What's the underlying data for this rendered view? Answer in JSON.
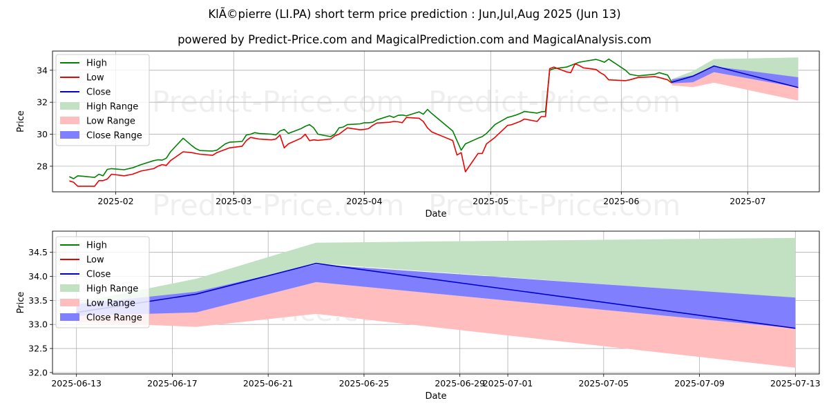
{
  "title": "KlÃ©pierre (LI.PA) short term price prediction : Jun,Jul,Aug 2025 (Jun 13)",
  "subtitle": "powered by Predict-Price.com and MagicalPrediction.com and MagicalAnalysis.com",
  "watermark": "Predict-Price.com",
  "colors": {
    "high": "#008000",
    "low": "#ee0000",
    "close": "#0000cc",
    "high_range": "#c2e0c2",
    "low_range": "#ffbdbd",
    "close_range": "#8080ff"
  },
  "chart_data": [
    {
      "type": "line",
      "xlabel": "Date",
      "ylabel": "Price",
      "xlim": [
        "2025-01-17",
        "2025-07-18"
      ],
      "ylim": [
        26.4,
        35.2
      ],
      "x_ticks": [
        "2025-02",
        "2025-03",
        "2025-04",
        "2025-05",
        "2025-06",
        "2025-07"
      ],
      "x_tick_dates": [
        "2025-02-01",
        "2025-03-01",
        "2025-04-01",
        "2025-05-01",
        "2025-06-01",
        "2025-07-01"
      ],
      "y_ticks": [
        28,
        30,
        32,
        34
      ],
      "legend": [
        "High",
        "Low",
        "Close",
        "High Range",
        "Low Range",
        "Close Range"
      ],
      "legend_position": "top-left",
      "dates": [
        "2025-01-21",
        "2025-01-22",
        "2025-01-23",
        "2025-01-24",
        "2025-01-27",
        "2025-01-28",
        "2025-01-29",
        "2025-01-30",
        "2025-01-31",
        "2025-02-03",
        "2025-02-05",
        "2025-02-07",
        "2025-02-10",
        "2025-02-11",
        "2025-02-12",
        "2025-02-13",
        "2025-02-14",
        "2025-02-17",
        "2025-02-19",
        "2025-02-20",
        "2025-02-21",
        "2025-02-24",
        "2025-02-25",
        "2025-02-26",
        "2025-02-27",
        "2025-02-28",
        "2025-03-03",
        "2025-03-04",
        "2025-03-05",
        "2025-03-06",
        "2025-03-07",
        "2025-03-10",
        "2025-03-11",
        "2025-03-12",
        "2025-03-13",
        "2025-03-14",
        "2025-03-17",
        "2025-03-18",
        "2025-03-19",
        "2025-03-20",
        "2025-03-21",
        "2025-03-24",
        "2025-03-25",
        "2025-03-26",
        "2025-03-27",
        "2025-03-28",
        "2025-03-31",
        "2025-04-01",
        "2025-04-02",
        "2025-04-03",
        "2025-04-04",
        "2025-04-07",
        "2025-04-08",
        "2025-04-09",
        "2025-04-10",
        "2025-04-11",
        "2025-04-14",
        "2025-04-15",
        "2025-04-16",
        "2025-04-17",
        "2025-04-22",
        "2025-04-23",
        "2025-04-24",
        "2025-04-25",
        "2025-04-28",
        "2025-04-29",
        "2025-04-30",
        "2025-05-02",
        "2025-05-05",
        "2025-05-06",
        "2025-05-07",
        "2025-05-08",
        "2025-05-09",
        "2025-05-12",
        "2025-05-13",
        "2025-05-14",
        "2025-05-15",
        "2025-05-16",
        "2025-05-19",
        "2025-05-20",
        "2025-05-21",
        "2025-05-22",
        "2025-05-23",
        "2025-05-26",
        "2025-05-27",
        "2025-05-28",
        "2025-05-29",
        "2025-05-30",
        "2025-06-02",
        "2025-06-03",
        "2025-06-04",
        "2025-06-05",
        "2025-06-06",
        "2025-06-09",
        "2025-06-10",
        "2025-06-11",
        "2025-06-12",
        "2025-06-13"
      ],
      "series": [
        {
          "name": "High",
          "values": [
            27.35,
            27.22,
            27.4,
            27.38,
            27.3,
            27.5,
            27.4,
            27.8,
            27.85,
            27.78,
            27.9,
            28.1,
            28.35,
            28.4,
            28.38,
            28.5,
            28.9,
            29.75,
            29.3,
            29.1,
            28.98,
            28.95,
            29.0,
            29.2,
            29.4,
            29.5,
            29.55,
            29.95,
            30.0,
            30.1,
            30.05,
            30.0,
            29.95,
            30.2,
            30.3,
            30.05,
            30.35,
            30.5,
            30.6,
            30.4,
            30.0,
            29.85,
            30.0,
            30.4,
            30.45,
            30.6,
            30.65,
            30.72,
            30.72,
            30.75,
            30.9,
            31.15,
            31.05,
            31.18,
            31.2,
            31.15,
            31.4,
            31.25,
            31.55,
            31.3,
            30.2,
            29.6,
            29.0,
            29.4,
            29.75,
            29.85,
            30.05,
            30.6,
            31.05,
            31.12,
            31.2,
            31.3,
            31.42,
            31.32,
            31.4,
            31.42,
            31.38,
            31.6,
            32.2,
            32.4,
            32.65,
            32.75,
            32.9,
            33.2,
            33.0,
            33.1,
            32.95,
            33.0,
            33.05,
            33.05,
            32.75,
            33.0,
            33.5,
            33.62,
            33.7,
            33.9,
            33.95,
            33.9
          ],
          "extra_dates": [
            "2025-06-05",
            "2025-06-06",
            "2025-06-09",
            "2025-06-10",
            "2025-06-11",
            "2025-06-12",
            "2025-06-13"
          ],
          "tail_values": [
            34.0,
            34.1,
            34.2,
            34.3,
            34.4,
            34.5,
            34.55,
            34.68,
            34.6,
            34.5,
            34.7,
            34.0,
            33.75,
            33.65,
            33.75,
            33.85,
            33.7,
            33.25
          ]
        },
        {
          "name": "Low",
          "values": [
            27.08,
            27.0,
            26.75,
            26.75,
            26.75,
            27.1,
            27.1,
            27.2,
            27.5,
            27.4,
            27.5,
            27.7,
            27.85,
            28.0,
            28.1,
            28.05,
            28.35,
            28.9,
            28.85,
            28.8,
            28.75,
            28.68,
            28.85,
            28.95,
            29.05,
            29.15,
            29.25,
            29.6,
            29.8,
            29.75,
            29.7,
            29.65,
            29.7,
            29.95,
            29.15,
            29.4,
            29.75,
            30.0,
            29.6,
            29.65,
            29.62,
            29.7,
            29.9,
            30.0,
            30.2,
            30.4,
            30.28,
            30.3,
            30.35,
            30.55,
            30.7,
            30.75,
            30.8,
            30.78,
            30.72,
            31.05,
            31.0,
            30.8,
            30.4,
            30.15,
            29.6,
            28.7,
            28.85,
            27.65,
            28.8,
            28.8,
            29.4,
            29.8,
            30.55,
            30.6,
            30.7,
            30.8,
            30.95,
            30.8,
            31.1,
            31.1,
            31.15,
            31.35,
            31.65,
            32.3,
            32.5,
            32.85,
            32.65,
            32.8,
            32.85,
            32.6,
            32.45,
            32.65,
            32.35,
            32.6,
            33.25,
            33.3,
            33.35,
            33.65,
            33.75,
            33.6,
            33.85,
            34.05
          ],
          "tail_values": [
            34.1,
            34.2,
            33.9,
            33.85,
            34.4,
            34.3,
            34.15,
            34.05,
            33.85,
            33.7,
            33.4,
            33.35,
            33.4,
            33.55,
            33.6,
            33.55,
            33.4,
            33.2
          ]
        }
      ],
      "note": "History is drawn from High/Low series; forecast bands shown on the right."
    },
    {
      "type": "area",
      "xlabel": "Date",
      "ylabel": "Price",
      "xlim": [
        "2025-06-12",
        "2025-07-14"
      ],
      "ylim": [
        31.97,
        34.94
      ],
      "x_ticks": [
        "2025-06-13",
        "2025-06-17",
        "2025-06-21",
        "2025-06-25",
        "2025-06-29",
        "2025-07-01",
        "2025-07-05",
        "2025-07-09",
        "2025-07-13"
      ],
      "y_ticks": [
        32.0,
        32.5,
        33.0,
        33.5,
        34.0,
        34.5
      ],
      "legend": [
        "High",
        "Low",
        "Close",
        "High Range",
        "Low Range",
        "Close Range"
      ],
      "legend_position": "top-left",
      "forecast_dates": [
        "2025-06-13",
        "2025-06-18",
        "2025-06-23",
        "2025-07-13"
      ],
      "series": [
        {
          "name": "Close",
          "values": [
            33.25,
            33.63,
            34.27,
            32.92
          ]
        },
        {
          "name": "High Range upper",
          "values": [
            33.45,
            33.95,
            34.7,
            34.8
          ]
        },
        {
          "name": "High Range lower",
          "values": [
            33.25,
            33.63,
            34.27,
            33.55
          ]
        },
        {
          "name": "Close Range upper",
          "values": [
            33.42,
            33.68,
            34.25,
            33.56
          ]
        },
        {
          "name": "Close Range lower",
          "values": [
            33.18,
            33.25,
            33.88,
            32.92
          ]
        },
        {
          "name": "Low Range upper",
          "values": [
            33.22,
            33.25,
            33.88,
            32.92
          ]
        },
        {
          "name": "Low Range lower",
          "values": [
            33.05,
            32.95,
            33.22,
            32.1
          ]
        }
      ]
    }
  ]
}
